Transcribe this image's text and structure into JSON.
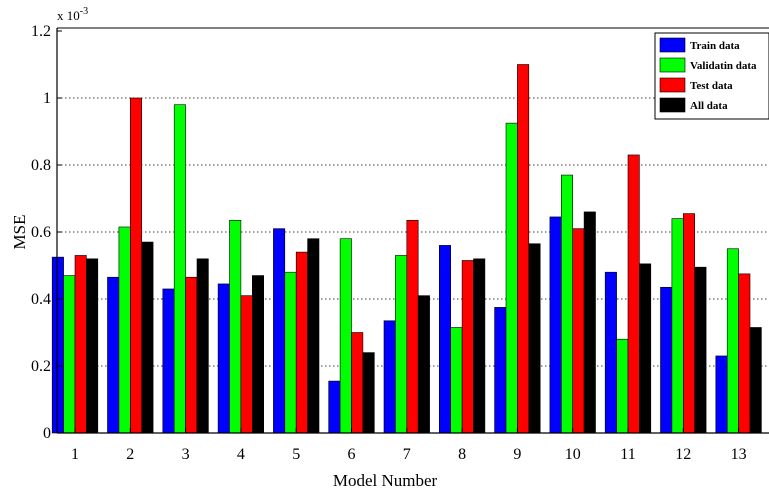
{
  "chart_data": {
    "type": "bar",
    "xlabel": "Model Number",
    "ylabel": "MSE",
    "y_multiplier": "x 10",
    "y_exponent": "-3",
    "ylim": [
      0,
      1.2
    ],
    "yticks": [
      "0",
      "0.2",
      "0.4",
      "0.6",
      "0.8",
      "1",
      "1.2"
    ],
    "ytick_values": [
      0,
      0.2,
      0.4,
      0.6,
      0.8,
      1.0,
      1.2
    ],
    "grid": "horizontal dotted",
    "legend_position": "top-right",
    "categories": [
      "1",
      "2",
      "3",
      "4",
      "5",
      "6",
      "7",
      "8",
      "9",
      "10",
      "11",
      "12",
      "13"
    ],
    "series": [
      {
        "name": "Train data",
        "color": "#0000ff",
        "values": [
          0.525,
          0.465,
          0.43,
          0.445,
          0.61,
          0.155,
          0.335,
          0.56,
          0.375,
          0.645,
          0.48,
          0.435,
          0.23
        ]
      },
      {
        "name": "Validatin data",
        "color": "#00ff00",
        "values": [
          0.47,
          0.615,
          0.98,
          0.635,
          0.48,
          0.58,
          0.53,
          0.315,
          0.925,
          0.77,
          0.28,
          0.64,
          0.55
        ]
      },
      {
        "name": "Test data",
        "color": "#ff0000",
        "values": [
          0.53,
          1.0,
          0.465,
          0.41,
          0.54,
          0.3,
          0.635,
          0.515,
          1.1,
          0.61,
          0.83,
          0.655,
          0.475
        ]
      },
      {
        "name": "All data",
        "color": "#000000",
        "values": [
          0.52,
          0.57,
          0.52,
          0.47,
          0.58,
          0.24,
          0.41,
          0.52,
          0.565,
          0.66,
          0.505,
          0.495,
          0.315
        ]
      }
    ]
  }
}
